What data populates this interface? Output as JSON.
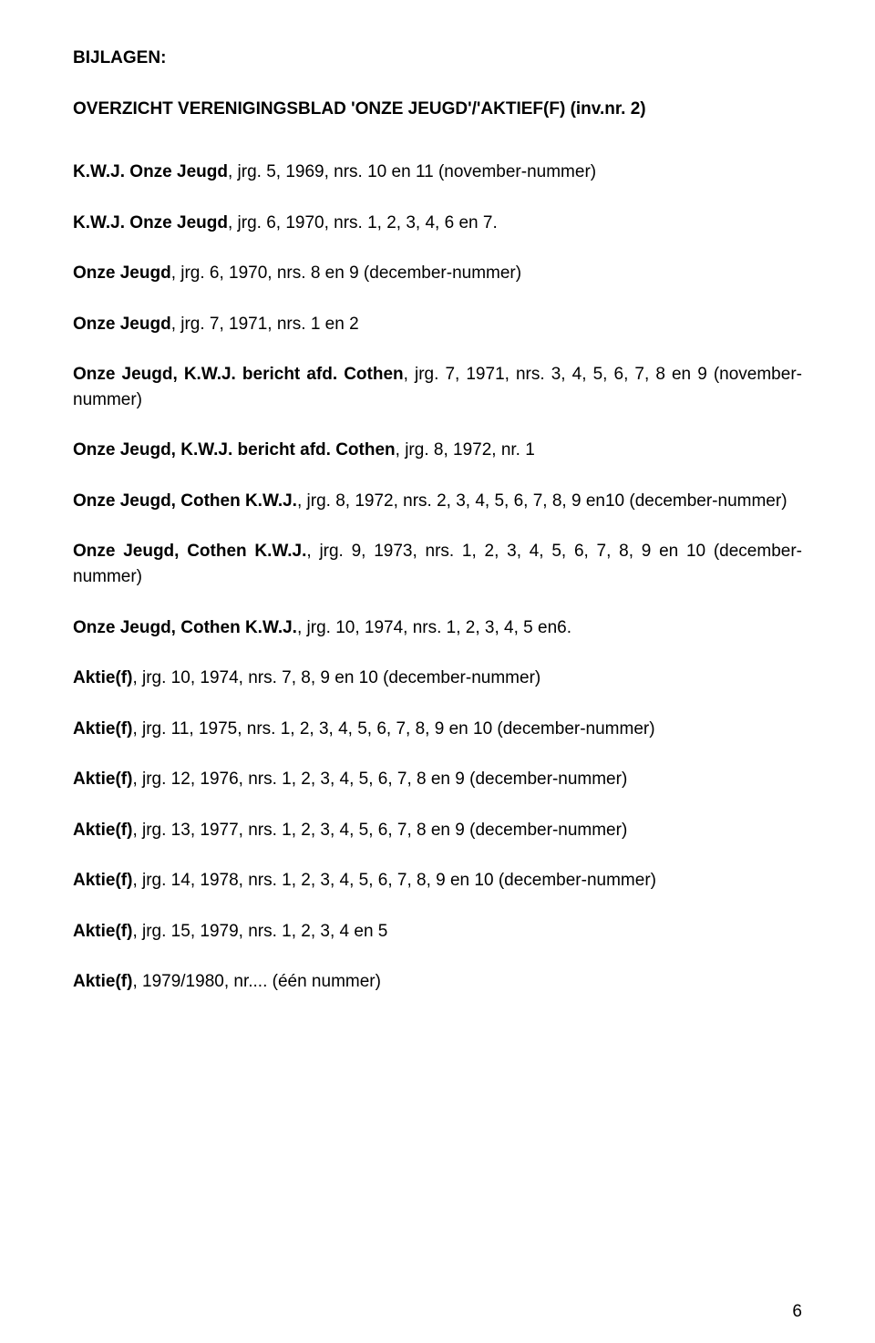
{
  "heading": "BIJLAGEN:",
  "subheading": "OVERZICHT VERENIGINGSBLAD 'ONZE JEUGD'/'AKTIEF(F) (inv.nr. 2)",
  "entries": [
    {
      "title": "K.W.J. Onze Jeugd",
      "rest": ", jrg. 5, 1969, nrs. 10 en 11 (november-nummer)"
    },
    {
      "title": "K.W.J. Onze Jeugd",
      "rest": ", jrg. 6, 1970, nrs. 1, 2, 3, 4, 6 en 7."
    },
    {
      "title": "Onze Jeugd",
      "rest": ", jrg. 6, 1970, nrs. 8 en 9 (december-nummer)"
    },
    {
      "title": "Onze Jeugd",
      "rest": ", jrg. 7, 1971, nrs. 1 en 2"
    },
    {
      "title": "Onze Jeugd, K.W.J. bericht afd. Cothen",
      "rest": ", jrg. 7, 1971, nrs. 3, 4, 5, 6, 7, 8 en 9 (november-nummer)"
    },
    {
      "title": "Onze Jeugd, K.W.J. bericht afd. Cothen",
      "rest": ", jrg. 8, 1972, nr. 1"
    },
    {
      "title": "Onze Jeugd, Cothen K.W.J.",
      "rest": ", jrg. 8, 1972, nrs. 2, 3, 4, 5, 6, 7, 8, 9 en10 (december-nummer)"
    },
    {
      "title": "Onze Jeugd, Cothen K.W.J.",
      "rest": ", jrg. 9, 1973, nrs. 1, 2, 3, 4, 5, 6, 7, 8, 9 en 10 (december-nummer)"
    },
    {
      "title": "Onze Jeugd, Cothen K.W.J.",
      "rest": ", jrg. 10, 1974, nrs. 1, 2, 3, 4, 5 en6."
    },
    {
      "title": "Aktie(f)",
      "rest": ", jrg. 10, 1974, nrs. 7, 8, 9 en 10 (december-nummer)"
    },
    {
      "title": "Aktie(f)",
      "rest": ", jrg. 11, 1975, nrs. 1, 2, 3, 4, 5, 6, 7, 8, 9 en 10 (december-nummer)"
    },
    {
      "title": "Aktie(f)",
      "rest": ", jrg. 12, 1976, nrs. 1, 2, 3, 4, 5, 6, 7, 8 en 9 (december-nummer)"
    },
    {
      "title": "Aktie(f)",
      "rest": ", jrg. 13, 1977, nrs. 1, 2, 3, 4, 5, 6, 7, 8 en 9 (december-nummer)"
    },
    {
      "title": "Aktie(f)",
      "rest": ", jrg. 14, 1978, nrs. 1, 2, 3, 4, 5, 6, 7, 8, 9 en 10 (december-nummer)"
    },
    {
      "title": "Aktie(f)",
      "rest": ", jrg. 15, 1979, nrs. 1, 2, 3, 4 en 5"
    },
    {
      "title": "Aktie(f)",
      "rest": ", 1979/1980, nr.... (één nummer)"
    }
  ],
  "page_number": "6"
}
